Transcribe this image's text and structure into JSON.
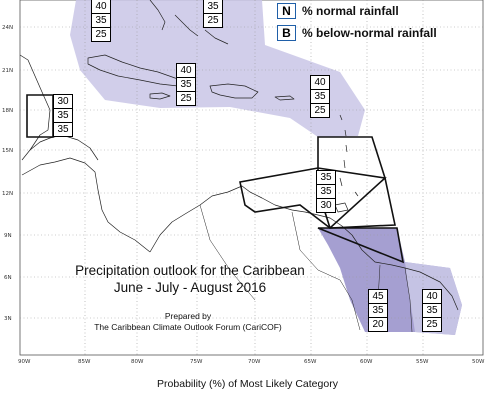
{
  "legend": [
    {
      "key": "N",
      "label": "% normal rainfall"
    },
    {
      "key": "B",
      "label": "% below-normal rainfall"
    }
  ],
  "lat_labels": [
    "24N",
    "21N",
    "18N",
    "15N",
    "12N",
    "9N",
    "6N",
    "3N"
  ],
  "lon_labels": [
    "90W",
    "85W",
    "80W",
    "75W",
    "70W",
    "65W",
    "60W",
    "55W",
    "50W"
  ],
  "probability_boxes": [
    {
      "id": "top-bahamas-west",
      "values": [
        "40",
        "35",
        "25"
      ]
    },
    {
      "id": "top-bahamas-east",
      "values": [
        "35",
        "25"
      ]
    },
    {
      "id": "belize",
      "values": [
        "30",
        "35",
        "35"
      ]
    },
    {
      "id": "greater-antilles",
      "values": [
        "40",
        "35",
        "25"
      ]
    },
    {
      "id": "leeward-islands",
      "values": [
        "40",
        "35",
        "25"
      ]
    },
    {
      "id": "windward-islands",
      "values": [
        "35",
        "35",
        "30"
      ]
    },
    {
      "id": "guyana",
      "values": [
        "45",
        "35",
        "20"
      ]
    },
    {
      "id": "suriname-french-guiana",
      "values": [
        "40",
        "35",
        "25"
      ]
    }
  ],
  "title": {
    "line1": "Precipitation outlook for the Caribbean",
    "line2": "June - July - August 2016"
  },
  "prepared": {
    "line1": "Prepared by",
    "line2": "The Caribbean Climate Outlook Forum (CariCOF)"
  },
  "caption": "Probability (%) of Most Likely Category",
  "colors": {
    "below_normal_light": "#c9c6e6",
    "below_normal_dark": "#9b95cc",
    "coast": "#222222",
    "grid": "#9a9a9a",
    "legend_border": "#1f5fa8"
  }
}
